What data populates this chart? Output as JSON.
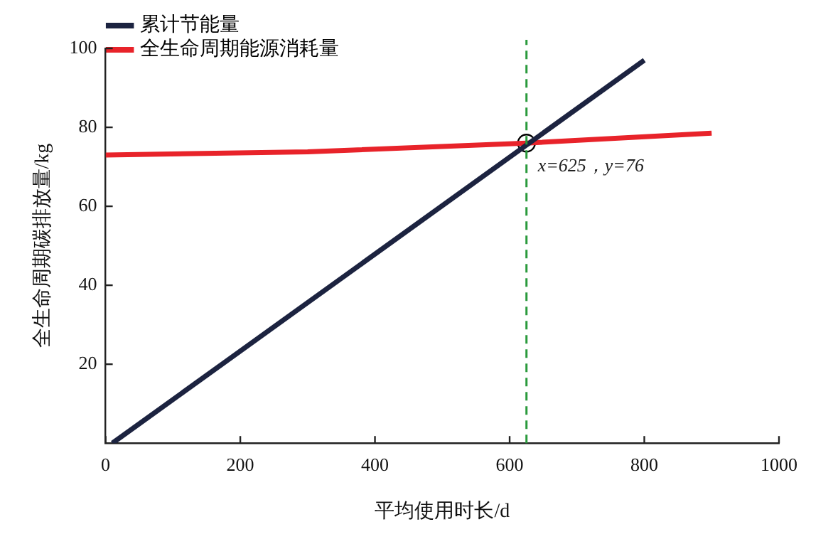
{
  "chart_data": {
    "type": "line",
    "xlabel": "平均使用时长/d",
    "ylabel": "全生命周期碳排放量/kg",
    "xlim": [
      0,
      1000
    ],
    "xticks": [
      0,
      200,
      400,
      600,
      800,
      1000
    ],
    "ylim": [
      0,
      100
    ],
    "yticks": [
      20,
      40,
      60,
      80,
      100
    ],
    "grid": false,
    "legend": "top left",
    "marker": "none",
    "line_style": "solid",
    "series": [
      {
        "name": "累计节能量",
        "color": "#1c2340",
        "x": [
          10,
          800
        ],
        "values": [
          0,
          97
        ]
      },
      {
        "name": "全生命周期能源消耗量",
        "color": "#e8232a",
        "x": [
          0,
          300,
          625,
          900
        ],
        "values": [
          73,
          73.8,
          76,
          78.5
        ]
      },
      {
        "type": "scatter",
        "marker": "circle",
        "color": "#000000",
        "x": [
          625
        ],
        "values": [
          76
        ]
      }
    ],
    "ref_lines": [
      {
        "axis": "x",
        "value": 625,
        "color": "#2a9a3c",
        "line_style": "dashed"
      }
    ],
    "annotations": [
      {
        "text": "x=625，y=76",
        "x": 625,
        "y": 76
      }
    ]
  }
}
